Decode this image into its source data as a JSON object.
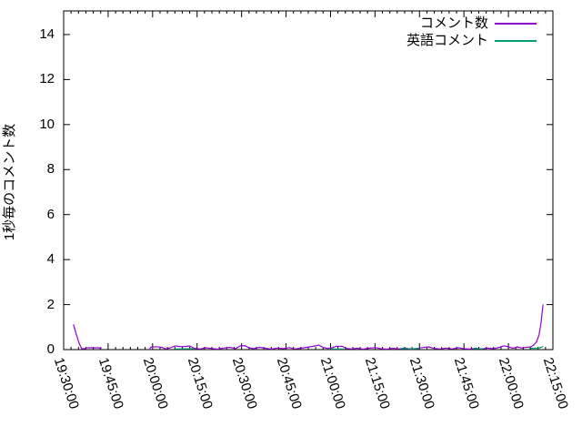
{
  "chart_data": {
    "type": "line",
    "title": "",
    "xlabel": "",
    "ylabel": "1秒毎のコメント数",
    "grid": false,
    "legend_position": "top-right-inside",
    "x_tick_labels": [
      "19:30:00",
      "19:45:00",
      "20:00:00",
      "20:15:00",
      "20:30:00",
      "20:45:00",
      "21:00:00",
      "21:15:00",
      "21:30:00",
      "21:45:00",
      "22:00:00",
      "22:15:00"
    ],
    "x_range_minutes": [
      0,
      165
    ],
    "x_major_tick_minutes": 15,
    "x_minor_tick_minutes": 2.5,
    "y_ticks": [
      0,
      2,
      4,
      6,
      8,
      10,
      12,
      14
    ],
    "y_tick_labels": [
      "0",
      "2",
      "4",
      "6",
      "8",
      "10",
      "12",
      "14"
    ],
    "ylim": [
      0,
      15.05
    ],
    "axis_color": "#000000",
    "series": [
      {
        "name": "コメント数",
        "color": "#9400d3",
        "segments": [
          [
            [
              3.3,
              1.12
            ],
            [
              4.2,
              0.7
            ],
            [
              5.3,
              0.25
            ],
            [
              6.1,
              0.04
            ],
            [
              7.3,
              0.04
            ],
            [
              7.5,
              0.08
            ],
            [
              12.0,
              0.08
            ],
            [
              12.3,
              0.04
            ],
            [
              12.4,
              0.0
            ]
          ],
          [
            [
              29.0,
              0.0
            ],
            [
              29.3,
              0.1
            ],
            [
              31.0,
              0.13
            ],
            [
              33.0,
              0.1
            ],
            [
              34.5,
              0.03
            ],
            [
              36.0,
              0.08
            ],
            [
              37.5,
              0.16
            ],
            [
              40.0,
              0.13
            ],
            [
              42.5,
              0.16
            ],
            [
              44.0,
              0.06
            ],
            [
              46.0,
              0.03
            ],
            [
              48.0,
              0.08
            ],
            [
              50.0,
              0.05
            ],
            [
              52.0,
              0.02
            ],
            [
              54.0,
              0.07
            ],
            [
              56.0,
              0.1
            ],
            [
              58.0,
              0.04
            ],
            [
              59.5,
              0.16
            ],
            [
              61.0,
              0.18
            ],
            [
              62.5,
              0.08
            ],
            [
              64.0,
              0.04
            ],
            [
              66.0,
              0.1
            ],
            [
              68.0,
              0.06
            ],
            [
              70.0,
              0.02
            ],
            [
              72.0,
              0.07
            ],
            [
              74.0,
              0.04
            ],
            [
              76.0,
              0.09
            ],
            [
              78.0,
              0.03
            ],
            [
              80.0,
              0.06
            ],
            [
              82.0,
              0.1
            ],
            [
              84.0,
              0.14
            ],
            [
              86.0,
              0.2
            ],
            [
              87.5,
              0.1
            ],
            [
              89.0,
              0.05
            ],
            [
              90.5,
              0.08
            ],
            [
              92.0,
              0.15
            ],
            [
              94.0,
              0.14
            ],
            [
              95.5,
              0.05
            ],
            [
              97.0,
              0.03
            ],
            [
              99.0,
              0.06
            ],
            [
              101.0,
              0.02
            ],
            [
              103.0,
              0.06
            ],
            [
              105.0,
              0.09
            ],
            [
              107.0,
              0.04
            ],
            [
              109.0,
              0.02
            ],
            [
              111.0,
              0.06
            ],
            [
              113.0,
              0.03
            ],
            [
              115.0,
              0.07
            ],
            [
              117.0,
              0.02
            ],
            [
              119.0,
              0.05
            ],
            [
              121.0,
              0.09
            ],
            [
              123.0,
              0.12
            ],
            [
              125.0,
              0.05
            ],
            [
              127.0,
              0.03
            ],
            [
              129.0,
              0.07
            ],
            [
              131.0,
              0.03
            ],
            [
              133.0,
              0.08
            ],
            [
              135.0,
              0.04
            ],
            [
              137.0,
              0.02
            ],
            [
              139.0,
              0.06
            ],
            [
              141.0,
              0.03
            ],
            [
              143.0,
              0.07
            ],
            [
              145.0,
              0.04
            ],
            [
              147.0,
              0.1
            ],
            [
              148.5,
              0.17
            ],
            [
              150.0,
              0.12
            ],
            [
              151.5,
              0.06
            ],
            [
              153.0,
              0.12
            ],
            [
              154.5,
              0.07
            ],
            [
              156.0,
              0.1
            ],
            [
              157.5,
              0.12
            ],
            [
              158.5,
              0.2
            ],
            [
              159.5,
              0.35
            ],
            [
              160.3,
              0.65
            ],
            [
              161.0,
              1.2
            ],
            [
              161.5,
              1.8
            ],
            [
              161.7,
              2.0
            ]
          ]
        ]
      },
      {
        "name": "英語コメント",
        "color": "#009e73",
        "segments": [
          [
            [
              37.5,
              0.03
            ],
            [
              44.0,
              0.04
            ]
          ],
          [
            [
              90.0,
              0.03
            ],
            [
              94.5,
              0.03
            ]
          ],
          [
            [
              113.5,
              0.04
            ],
            [
              120.0,
              0.04
            ]
          ],
          [
            [
              138.0,
              0.04
            ],
            [
              141.5,
              0.04
            ]
          ],
          [
            [
              157.0,
              0.06
            ],
            [
              160.0,
              0.06
            ],
            [
              161.2,
              0.1
            ],
            [
              161.7,
              0.15
            ]
          ]
        ]
      }
    ]
  }
}
